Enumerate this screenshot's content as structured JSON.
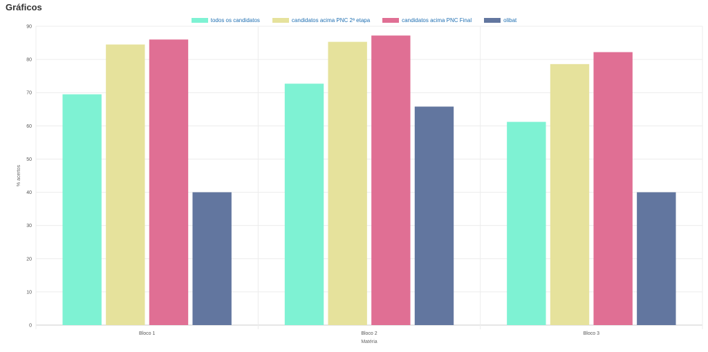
{
  "page": {
    "title": "Gráficos"
  },
  "colors": {
    "todos": "#7ef2d3",
    "pnc2": "#e6e29c",
    "pncFinal": "#e06f94",
    "olibat": "#62769f"
  },
  "chart_data": {
    "type": "bar",
    "categories": [
      "Bloco 1",
      "Bloco 2",
      "Bloco 3"
    ],
    "series": [
      {
        "name": "todos os candidatos",
        "color_key": "todos",
        "values": [
          69.5,
          72.7,
          61.2
        ]
      },
      {
        "name": "candidatos acima PNC 2ª etapa",
        "color_key": "pnc2",
        "values": [
          84.5,
          85.3,
          78.6
        ]
      },
      {
        "name": "candidatos acima PNC Final",
        "color_key": "pncFinal",
        "values": [
          86.0,
          87.2,
          82.2
        ]
      },
      {
        "name": "olibat",
        "color_key": "olibat",
        "values": [
          40,
          65.8,
          40
        ]
      }
    ],
    "xlabel": "Matéria",
    "ylabel": "% acertos",
    "ylim": [
      0,
      90
    ],
    "yticks": [
      0,
      10,
      20,
      30,
      40,
      50,
      60,
      70,
      80,
      90
    ],
    "grid": true,
    "legend_position": "top-center"
  }
}
